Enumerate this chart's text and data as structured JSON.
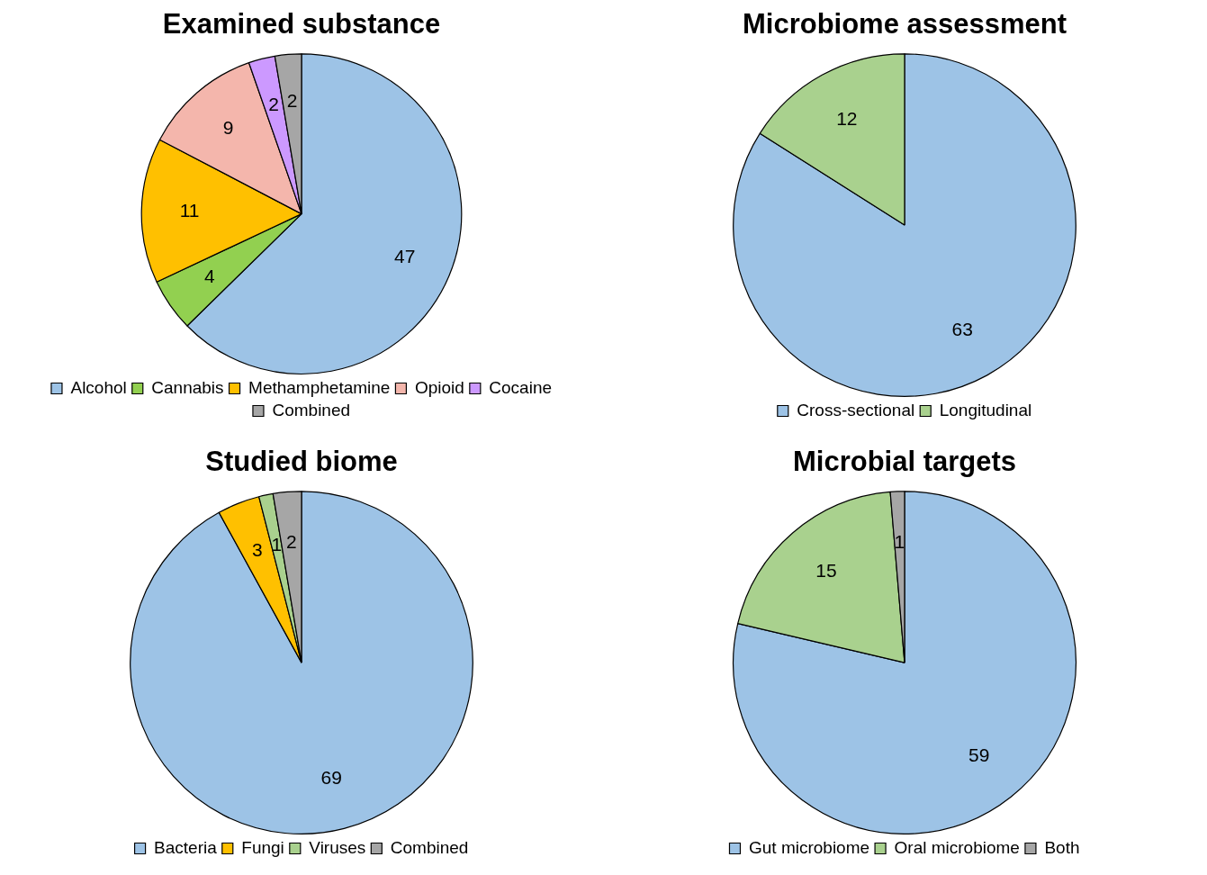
{
  "chart_data": [
    {
      "type": "pie",
      "title": "Examined substance",
      "categories": [
        "Alcohol",
        "Cannabis",
        "Methamphetamine",
        "Opioid",
        "Cocaine",
        "Combined"
      ],
      "values": [
        47,
        4,
        11,
        9,
        2,
        2
      ],
      "colors": [
        "#9dc3e6",
        "#92d050",
        "#ffc000",
        "#f4b6ac",
        "#cc99ff",
        "#a6a6a6"
      ],
      "data_labels": true,
      "legend": "bottom"
    },
    {
      "type": "pie",
      "title": "Microbiome assessment",
      "categories": [
        "Cross-sectional",
        "Longitudinal"
      ],
      "values": [
        63,
        12
      ],
      "colors": [
        "#9dc3e6",
        "#a9d18e"
      ],
      "data_labels": true,
      "legend": "bottom"
    },
    {
      "type": "pie",
      "title": "Studied biome",
      "categories": [
        "Bacteria",
        "Fungi",
        "Viruses",
        "Combined"
      ],
      "values": [
        69,
        3,
        1,
        2
      ],
      "colors": [
        "#9dc3e6",
        "#ffc000",
        "#a9d18e",
        "#a6a6a6"
      ],
      "data_labels": true,
      "legend": "bottom"
    },
    {
      "type": "pie",
      "title": "Microbial targets",
      "categories": [
        "Gut microbiome",
        "Oral microbiome",
        "Both"
      ],
      "values": [
        59,
        15,
        1
      ],
      "colors": [
        "#9dc3e6",
        "#a9d18e",
        "#a6a6a6"
      ],
      "data_labels": true,
      "legend": "bottom"
    }
  ]
}
